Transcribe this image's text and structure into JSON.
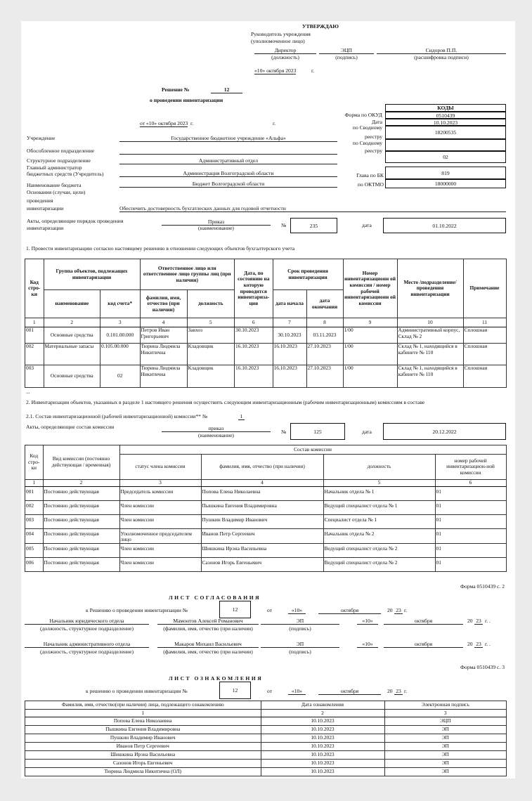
{
  "approval": {
    "title": "УТВЕРЖДАЮ",
    "head": "Руководитель учреждения",
    "head_note": "(уполномоченное лицо)",
    "position": "Директор",
    "position_caption": "(должность)",
    "signature": "ЭЦП",
    "signature_caption": "(подпись)",
    "name": "Сидоров П.П.",
    "name_caption": "(расшифровка подписи)",
    "date": "«10»  октября   2023",
    "date_suffix": "г."
  },
  "decision": {
    "label": "Решение  №",
    "number": "12",
    "subtitle": "о проведении  инвентаризации",
    "date": "от «10» октября 2023",
    "date_suffix": "г.",
    "g": "г."
  },
  "codes": {
    "header": "КОДЫ",
    "okud_label": "Форма по ОКУД",
    "okud": "0510439",
    "date_label": "Дата",
    "date": "10.10.2023",
    "reg1_label_a": "по Сводному",
    "reg1_label_b": "реестру",
    "reg1": "18200535",
    "reg2_label_a": "по Сводному",
    "reg2_label_b": "реестру",
    "reg2": "",
    "struct": "02",
    "bk_label": "Глава по БК",
    "bk": "819",
    "oktmo_label": "по ОКТМО",
    "oktmo": "18000000"
  },
  "fields": {
    "institution_label": "Учреждение",
    "institution": "Государственное бюджетное учреждение «Альфа»",
    "separate_label": "Обособленное подразделение",
    "separate": "",
    "structural_label": "Структурное подразделение",
    "structural": "Административный отдел",
    "admin_label_a": "Главный администратор",
    "admin_label_b": "бюджетных средств (Учредитель)",
    "admin": "Администрация Волгоградской области",
    "budget_label": "Наименование бюджета",
    "budget": "Бюджет Волгоградской области",
    "basis_label_a": "Основания (случаи, цели)",
    "basis_label_b": "проведения",
    "basis_label_c": "инвентаризации",
    "basis": "Обеспечить достоверность бухгатлеских данных для годовой отчетности"
  },
  "acts_order": {
    "label_a": "Акты, определяющие порядок проведения",
    "label_b": "инвентаризации",
    "type": "Приказ",
    "type_caption": "(наименование)",
    "number_label": "№",
    "number": "235",
    "date_label": "дата",
    "date": "01.10.2022"
  },
  "section1": {
    "text": "1. Провести инвентаризацию согласно настоящему решению в отношении следующих объектов бухгалтерского учета",
    "headers": {
      "code": "Код стро-ки",
      "group": "Группа объектов, подлежащих инвентаризации",
      "name": "наименование",
      "account": "код счета*",
      "responsible": "Ответственное лицо или ответственное лицо группы лиц (при наличии)",
      "fio": "фамилия, имя, отчество (при наличии)",
      "position": "должность",
      "as_of": "Дата, по состоянию на которую проводится инвентариза-ция",
      "period": "Срок проведения инвентаризации",
      "start": "дата начала",
      "end": "дата окончания",
      "commission": "Номер инвентаризационн ой комиссии / номер рабочей инвентаризационн ой комиссии",
      "place": "Место /подразделение/ проведения инвентаризации",
      "note": "Примечание"
    },
    "numbers": [
      "1",
      "2",
      "3",
      "4",
      "5",
      "6",
      "7",
      "8",
      "9",
      "10",
      "11"
    ],
    "rows": [
      [
        "001",
        "Основные средства",
        "0.101.00.000",
        "Петров Иван Григорьевич",
        "Завхоз",
        "30.10.2023",
        "30.10.2023",
        "03.11.2023",
        "1/00",
        "Административный корпус, Склад № 2",
        "Сплошная"
      ],
      [
        "002",
        "Материальные запасы",
        "0.105.00.000",
        "Тюрина Людмила Никитична",
        "Кладовщик",
        "16.10.2023",
        "16.10.2023",
        "27.10.2023",
        "1/00",
        "Склад № 1, находящийся в кабинете № 110",
        "Сплошная"
      ],
      [
        "003",
        "Основные средства",
        "02",
        "Тюрина Людмила Никитична",
        "Кладовщик",
        "16.10.2023",
        "16.10.2023",
        "27.10.2023",
        "1/00",
        "Склад № 1, находящийся в кабинете № 110",
        "Сплошная"
      ]
    ],
    "ellipsis": "..."
  },
  "section2": {
    "text": "2. Инвентаризации объектов, указанных в разделе 1 настоящего решения осуществить следующим инвентаризационным (рабочим инвентаризационным)  комиссиям в составе",
    "sub_text": "2.1. Состав инвентаризационной (рабочей инвентаризационной) комиссии** №",
    "sub_number": "1",
    "acts_label": "Акты, определяющие состав комиссии",
    "acts_type": "приказ",
    "acts_type_caption": "(наименование)",
    "acts_number_label": "№",
    "acts_number": "125",
    "acts_date_label": "дата",
    "acts_date": "20.12.2022",
    "headers": {
      "code": "Код стро-ки",
      "kind": "Вид комиссии (постоянно действующая / временная)",
      "composition": "Состав комиссии",
      "status": "статус члена комиссии",
      "fio": "фамилия, имя, отчество (при наличии)",
      "position": "должность",
      "group_number": "номер рабочей инвентаризацион-ной комиссии"
    },
    "numbers": [
      "1",
      "2",
      "3",
      "4",
      "5",
      "6"
    ],
    "rows": [
      [
        "001",
        "Постоянно действующая",
        "Председатель комиссии",
        "Попова Елена Николаевна",
        "Начальник отдела № 1",
        "01"
      ],
      [
        "002",
        "Постоянно действующая",
        "Член комиссии",
        "Пышкина Евгения Владимировна",
        "Ведущий специалист отдела № 1",
        "01"
      ],
      [
        "003",
        "Постоянно действующая",
        "Член комиссии",
        "Пушкин Владимир Иванович",
        "Специалист отдела № 1",
        "01"
      ],
      [
        "004",
        "Постоянно действующая",
        "Уполномоченное председателем лицо",
        "Иванов Петр Сергеевич",
        "Начальник отдела № 2",
        "01"
      ],
      [
        "005",
        "Постоянно действующая",
        "Член комиссии",
        "Шишкина Ирэна Васильевна",
        "Ведущий специалист отдела № 2",
        "01"
      ],
      [
        "006",
        "Постоянно действующая",
        "Член комиссии",
        "Сазонов Игорь Евгеньевич",
        "Ведущий специалист отдела № 2",
        "01"
      ]
    ]
  },
  "approval_sheet": {
    "form": "Форма 0510439 с. 2",
    "title": "ЛИСТ СОГЛАСОВАНИЯ",
    "ref_label": "к Решению о проведении инвентаризации №",
    "ref_number": "12",
    "from": "от",
    "day": "«10»",
    "month": "октября",
    "year_prefix": "20",
    "year": "23",
    "year_suffix": "г.",
    "position_caption": "(должность, структурное подразделение)",
    "fio_caption": "(фамилия, имя, отчество (при наличии)",
    "signature_caption": "(подпись)",
    "signers": [
      {
        "position": "Начальник юридического отдела",
        "fio": "Мамонтов Алексей Романович",
        "signature": "ЭП",
        "day": "«10»",
        "month": "октября",
        "year_prefix": "20",
        "year": "23",
        "year_suffix": "г. ."
      },
      {
        "position": "Начальник административного отдела",
        "fio": "Макаров Михаил Васильевич",
        "signature": "ЭП",
        "day": "«10»",
        "month": "октября",
        "year_prefix": "20",
        "year": "23",
        "year_suffix": "г. ."
      }
    ]
  },
  "familiarization_sheet": {
    "form": "Форма 0510439 с. 3",
    "title": "ЛИСТ ОЗНАКОМЛЕНИЯ",
    "ref_label": "к решению о проведении инвентаризации №",
    "ref_number": "12",
    "from": "от",
    "day": "«10»",
    "month": "октября",
    "year_prefix": "20",
    "year": "23",
    "year_suffix": "г.",
    "headers": [
      "Фамилия, имя, отчество(при наличии) лица, подлежащего ознакомлению",
      "Дата ознакомления",
      "Электронная подпись"
    ],
    "numbers": [
      "1",
      "2",
      "3"
    ],
    "rows": [
      [
        "Попова Елена Николаевна",
        "10.10.2023",
        "ЭЦП"
      ],
      [
        "Пышкина Евгения Владимировна",
        "10.10.2023",
        "ЭП"
      ],
      [
        "Пушкин Владимир Иванович",
        "10.10.2023",
        "ЭП"
      ],
      [
        "Иванов Петр Сергеевич",
        "10.10.2023",
        "ЭП"
      ],
      [
        "Шишкина Ирэна Васильевна",
        "10.10.2023",
        "ЭП"
      ],
      [
        "Сазонов Игорь Евгеньевич",
        "10.10.2023",
        "ЭП"
      ],
      [
        "Тюрина Людмила Никитична (ОЛ)",
        "10.10.2023",
        "ЭП"
      ]
    ]
  }
}
